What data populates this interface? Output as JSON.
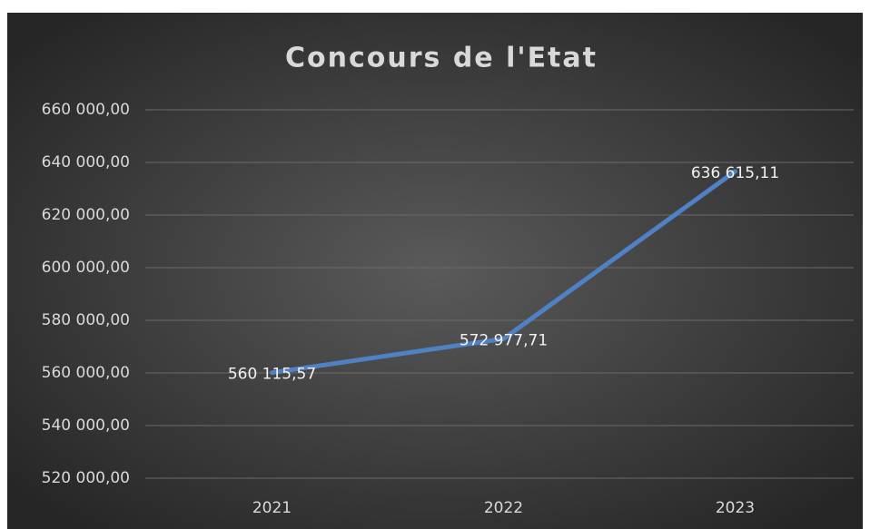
{
  "chart_data": {
    "type": "line",
    "title": "Concours de l'Etat",
    "categories": [
      "2021",
      "2022",
      "2023"
    ],
    "series": [
      {
        "name": "Concours de l'Etat",
        "color": "#4f81c4",
        "values": [
          560115.57,
          572977.71,
          636615.11
        ],
        "value_labels": [
          "560 115,57",
          "572 977,71",
          "636 615,11"
        ]
      }
    ],
    "ylim": [
      520000,
      660000
    ],
    "yticks": [
      {
        "value": 520000,
        "label": "520 000,00"
      },
      {
        "value": 540000,
        "label": "540 000,00"
      },
      {
        "value": 560000,
        "label": "560 000,00"
      },
      {
        "value": 580000,
        "label": "580 000,00"
      },
      {
        "value": 600000,
        "label": "600 000,00"
      },
      {
        "value": 620000,
        "label": "620 000,00"
      },
      {
        "value": 640000,
        "label": "640 000,00"
      },
      {
        "value": 660000,
        "label": "660 000,00"
      }
    ],
    "grid": true
  }
}
